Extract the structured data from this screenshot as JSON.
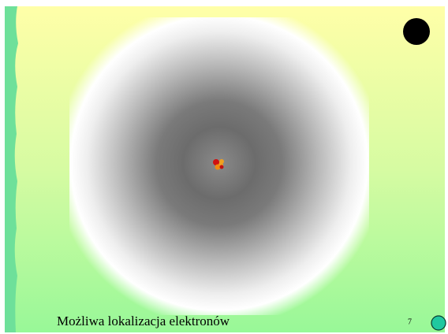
{
  "slide": {
    "caption": "Możliwa lokalizacja elektronów",
    "page_number": 7
  }
}
